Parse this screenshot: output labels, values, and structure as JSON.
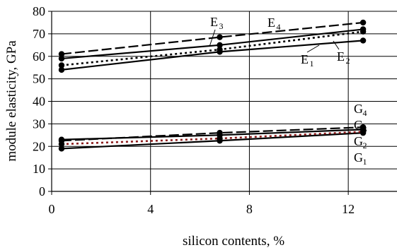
{
  "chart_data": {
    "type": "line",
    "xlabel": "silicon contents, %",
    "ylabel": "module elasticity, GPa",
    "xlim": [
      0,
      14
    ],
    "ylim": [
      0,
      80
    ],
    "x_ticks": [
      0,
      4,
      8,
      12
    ],
    "y_ticks": [
      0,
      10,
      20,
      30,
      40,
      50,
      60,
      70,
      80
    ],
    "grid": "vertical-and-horizontal",
    "series": [
      {
        "name": "E1",
        "style": "solid",
        "color": "#000000",
        "x": [
          0.4,
          6.8,
          12.6
        ],
        "y": [
          54,
          62,
          67
        ]
      },
      {
        "name": "E2",
        "style": "dotted",
        "color": "#000000",
        "x": [
          0.4,
          6.8,
          12.6
        ],
        "y": [
          56,
          63,
          71
        ]
      },
      {
        "name": "E3",
        "style": "solid",
        "color": "#000000",
        "x": [
          0.4,
          6.8,
          12.6
        ],
        "y": [
          59,
          65,
          72
        ]
      },
      {
        "name": "E4",
        "style": "dashed",
        "color": "#000000",
        "x": [
          0.4,
          6.8,
          12.6
        ],
        "y": [
          61,
          68.5,
          75
        ]
      },
      {
        "name": "G1",
        "style": "solid",
        "color": "#000000",
        "x": [
          0.4,
          6.8,
          12.6
        ],
        "y": [
          19,
          22.5,
          26
        ]
      },
      {
        "name": "G2",
        "style": "dotted",
        "color": "#8b1a1a",
        "x": [
          0.4,
          6.8,
          12.6
        ],
        "y": [
          21,
          23.5,
          26.5
        ]
      },
      {
        "name": "G3",
        "style": "solid",
        "color": "#000000",
        "x": [
          0.4,
          6.8,
          12.6
        ],
        "y": [
          23,
          25,
          27.5
        ]
      },
      {
        "name": "G4",
        "style": "dashed",
        "color": "#000000",
        "x": [
          0.4,
          6.8,
          12.6
        ],
        "y": [
          22.5,
          26,
          28.5
        ]
      }
    ],
    "annotations": [
      {
        "main": "E",
        "sub": "1"
      },
      {
        "main": "E",
        "sub": "2"
      },
      {
        "main": "E",
        "sub": "3"
      },
      {
        "main": "E",
        "sub": "4"
      },
      {
        "main": "G",
        "sub": "1"
      },
      {
        "main": "G",
        "sub": "2"
      },
      {
        "main": "G",
        "sub": "3"
      },
      {
        "main": "G",
        "sub": "4"
      }
    ]
  }
}
